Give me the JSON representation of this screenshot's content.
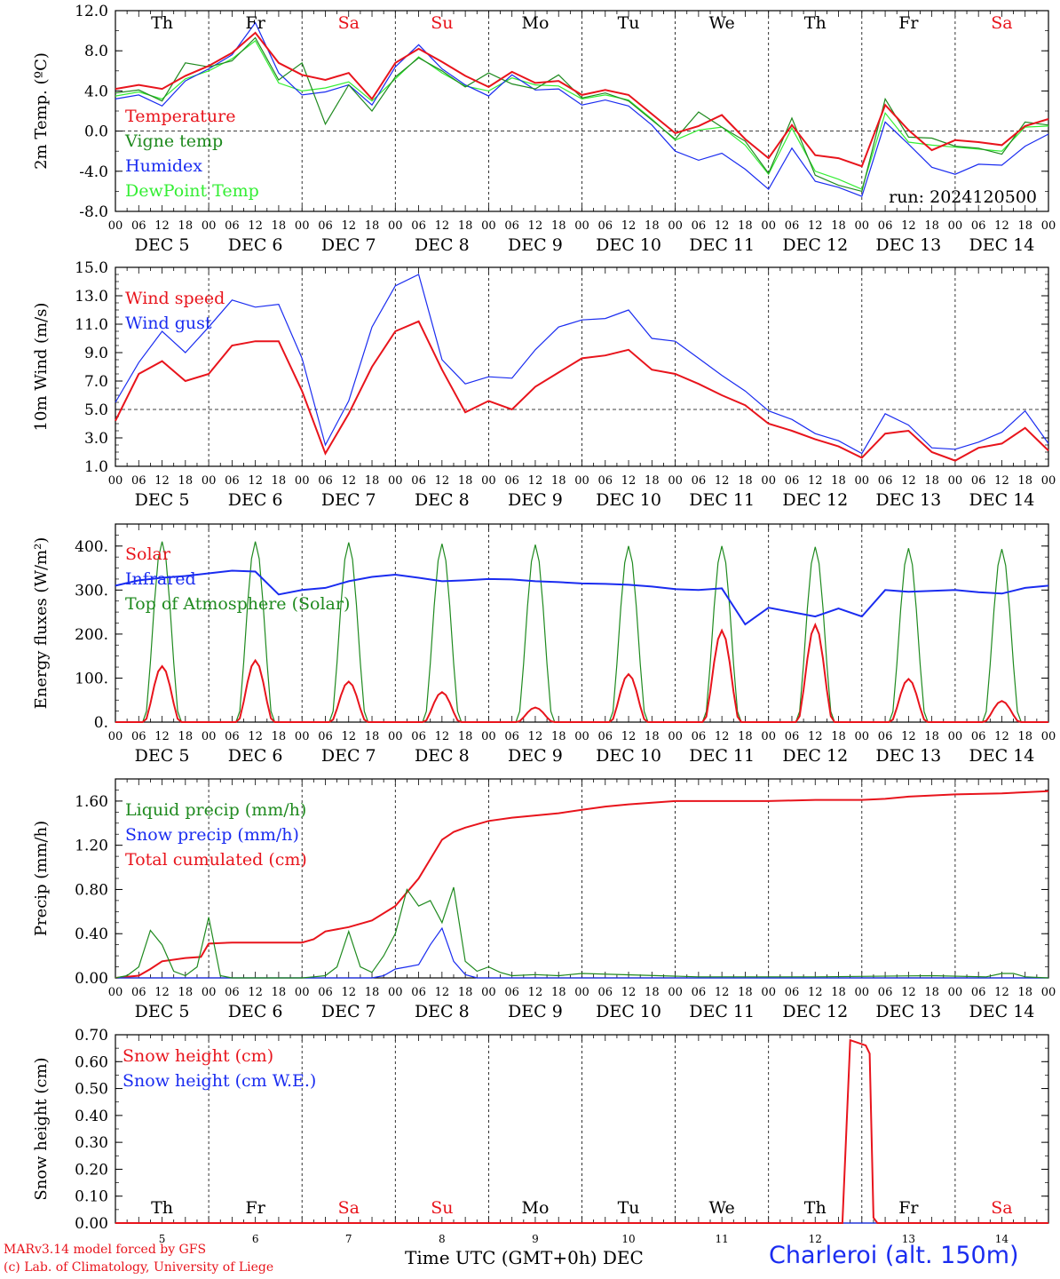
{
  "meta": {
    "run_label": "run: 2024120500",
    "footer_model": "MARv3.14 model forced by GFS",
    "footer_lab": "(c) Lab. of Climatology, University of Liege",
    "footer_axis": "Time UTC (GMT+0h) DEC",
    "station": "Charleroi (alt. 150m)"
  },
  "axes": {
    "weekdays": [
      "Th",
      "Fr",
      "Sa",
      "Su",
      "Mo",
      "Tu",
      "We",
      "Th",
      "Fr",
      "Sa"
    ],
    "weekday_weekend": [
      false,
      false,
      true,
      true,
      false,
      false,
      false,
      false,
      false,
      true
    ],
    "date_labels": [
      "DEC  5",
      "DEC  6",
      "DEC  7",
      "DEC  8",
      "DEC  9",
      "DEC 10",
      "DEC 11",
      "DEC 12",
      "DEC 13",
      "DEC 14"
    ],
    "hour_ticks": [
      "00",
      "06",
      "12",
      "18"
    ],
    "day_numbers": [
      "5",
      "6",
      "7",
      "8",
      "9",
      "10",
      "11",
      "12",
      "13",
      "14"
    ]
  },
  "colors": {
    "red": "#e8141c",
    "green": "#1f8a1f",
    "blue": "#1a2cf0",
    "lightgreen": "#33ee33"
  },
  "chart_data": [
    {
      "type": "line",
      "ylabel": "2m Temp. (ºC)",
      "ylim": [
        -8,
        12
      ],
      "yticks": [
        "12.0",
        "8.0",
        "4.0",
        "0.0",
        "-4.0",
        "-8.0"
      ],
      "reference_line": 0,
      "x_unit": "hours since DEC 5 00 UTC",
      "series": [
        {
          "name": "Temperature",
          "color": "red",
          "x": [
            0,
            6,
            12,
            18,
            24,
            30,
            36,
            42,
            48,
            54,
            60,
            66,
            72,
            78,
            84,
            90,
            96,
            102,
            108,
            114,
            120,
            126,
            132,
            138,
            144,
            150,
            156,
            162,
            168,
            174,
            180,
            186,
            192,
            198,
            204,
            210,
            216,
            222,
            228,
            234,
            240
          ],
          "y": [
            4.2,
            4.6,
            4.2,
            5.5,
            6.5,
            7.8,
            9.8,
            6.8,
            5.6,
            5.1,
            5.8,
            3.2,
            6.8,
            8.2,
            6.9,
            5.5,
            4.4,
            5.9,
            4.8,
            5.0,
            3.6,
            4.1,
            3.6,
            1.7,
            -0.2,
            0.5,
            1.6,
            -0.8,
            -2.7,
            0.6,
            -2.4,
            -2.7,
            -3.5,
            2.6,
            0.1,
            -1.9,
            -0.9,
            -1.1,
            -1.4,
            0.5,
            1.2
          ]
        },
        {
          "name": "Vigne temp",
          "color": "green",
          "x": [
            0,
            6,
            12,
            18,
            24,
            30,
            36,
            42,
            48,
            54,
            60,
            66,
            72,
            78,
            84,
            90,
            96,
            102,
            108,
            114,
            120,
            126,
            132,
            138,
            144,
            150,
            156,
            162,
            168,
            174,
            180,
            186,
            192,
            198,
            204,
            210,
            216,
            222,
            228,
            234,
            240
          ],
          "y": [
            3.8,
            4.1,
            3.0,
            6.8,
            6.4,
            7.0,
            9.3,
            5.1,
            6.8,
            0.7,
            4.6,
            2.0,
            5.4,
            7.3,
            6.0,
            4.4,
            5.8,
            4.7,
            4.2,
            5.6,
            3.3,
            3.8,
            3.0,
            1.1,
            -0.8,
            1.9,
            0.4,
            -1.0,
            -4.2,
            1.3,
            -4.4,
            -5.4,
            -6.0,
            3.2,
            -0.6,
            -0.7,
            -1.5,
            -1.7,
            -2.3,
            0.9,
            0.6
          ]
        },
        {
          "name": "Humidex",
          "color": "blue",
          "x": [
            0,
            6,
            12,
            18,
            24,
            30,
            36,
            42,
            48,
            54,
            60,
            66,
            72,
            78,
            84,
            90,
            96,
            102,
            108,
            114,
            120,
            126,
            132,
            138,
            144,
            150,
            156,
            162,
            168,
            174,
            180,
            186,
            192,
            198,
            204,
            210,
            216,
            222,
            228,
            234,
            240
          ],
          "y": [
            3.2,
            3.6,
            2.5,
            5.0,
            6.2,
            7.6,
            10.8,
            5.8,
            3.6,
            3.9,
            4.6,
            2.6,
            6.4,
            8.6,
            6.2,
            4.6,
            3.5,
            5.6,
            4.1,
            4.2,
            2.6,
            3.1,
            2.5,
            0.6,
            -2.0,
            -2.9,
            -2.2,
            -3.8,
            -5.8,
            -1.7,
            -5.0,
            -5.6,
            -6.5,
            0.9,
            -1.3,
            -3.6,
            -4.3,
            -3.3,
            -3.4,
            -1.5,
            -0.3
          ]
        },
        {
          "name": "DewPoint Temp",
          "color": "lightgreen",
          "x": [
            0,
            6,
            12,
            18,
            24,
            30,
            36,
            42,
            48,
            54,
            60,
            66,
            72,
            78,
            84,
            90,
            96,
            102,
            108,
            114,
            120,
            126,
            132,
            138,
            144,
            150,
            156,
            162,
            168,
            174,
            180,
            186,
            192,
            198,
            204,
            210,
            216,
            222,
            228,
            234,
            240
          ],
          "y": [
            3.5,
            3.9,
            3.2,
            5.2,
            6.0,
            7.2,
            9.0,
            4.8,
            4.0,
            4.3,
            4.9,
            3.0,
            5.2,
            7.4,
            5.8,
            4.5,
            4.0,
            5.3,
            4.6,
            4.5,
            3.2,
            3.6,
            3.1,
            1.2,
            -0.9,
            0.1,
            0.4,
            -1.4,
            -4.3,
            0.3,
            -4.0,
            -4.8,
            -5.8,
            1.8,
            -1.1,
            -1.4,
            -1.6,
            -1.8,
            -2.0,
            0.4,
            0.5
          ]
        }
      ]
    },
    {
      "type": "line",
      "ylabel": "10m Wind (m/s)",
      "ylim": [
        1,
        15
      ],
      "yticks": [
        "15.0",
        "13.0",
        "11.0",
        "9.0",
        "7.0",
        "5.0",
        "3.0",
        "1.0"
      ],
      "reference_line": 5,
      "x_unit": "hours since DEC 5 00 UTC",
      "series": [
        {
          "name": "Wind speed",
          "color": "red",
          "x": [
            0,
            6,
            12,
            18,
            24,
            30,
            36,
            42,
            48,
            54,
            60,
            66,
            72,
            78,
            84,
            90,
            96,
            102,
            108,
            114,
            120,
            126,
            132,
            138,
            144,
            150,
            156,
            162,
            168,
            174,
            180,
            186,
            192,
            198,
            204,
            210,
            216,
            222,
            228,
            234,
            240
          ],
          "y": [
            4.2,
            7.5,
            8.4,
            7.0,
            7.5,
            9.5,
            9.8,
            9.8,
            6.3,
            1.9,
            4.7,
            8.0,
            10.5,
            11.2,
            7.8,
            4.8,
            5.6,
            5.0,
            6.6,
            7.6,
            8.6,
            8.8,
            9.2,
            7.8,
            7.5,
            6.8,
            6.0,
            5.3,
            4.0,
            3.5,
            2.9,
            2.4,
            1.6,
            3.3,
            3.5,
            2.0,
            1.4,
            2.3,
            2.6,
            3.7,
            2.1
          ]
        },
        {
          "name": "Wind gust",
          "color": "blue",
          "x": [
            0,
            6,
            12,
            18,
            24,
            30,
            36,
            42,
            48,
            54,
            60,
            66,
            72,
            78,
            84,
            90,
            96,
            102,
            108,
            114,
            120,
            126,
            132,
            138,
            144,
            150,
            156,
            162,
            168,
            174,
            180,
            186,
            192,
            198,
            204,
            210,
            216,
            222,
            228,
            234,
            240
          ],
          "y": [
            5.5,
            8.3,
            10.5,
            9.0,
            10.8,
            12.7,
            12.2,
            12.4,
            8.6,
            2.5,
            5.6,
            10.8,
            13.7,
            14.5,
            8.5,
            6.8,
            7.3,
            7.2,
            9.2,
            10.8,
            11.3,
            11.4,
            12.0,
            10.0,
            9.8,
            8.6,
            7.4,
            6.3,
            4.9,
            4.3,
            3.3,
            2.8,
            1.9,
            4.7,
            3.9,
            2.3,
            2.2,
            2.7,
            3.4,
            4.9,
            2.6
          ]
        }
      ]
    },
    {
      "type": "line",
      "ylabel": "Energy fluxes (W/m²)",
      "ylim": [
        0,
        450
      ],
      "yticks": [
        "400.",
        "300.",
        "200.",
        "100.",
        "0."
      ],
      "x_unit": "hours since DEC 5 00 UTC",
      "series": [
        {
          "name": "Solar",
          "color": "red",
          "peaks": [
            127,
            140,
            92,
            68,
            33,
            109,
            208,
            221,
            98,
            48
          ]
        },
        {
          "name": "Infrared",
          "color": "blue",
          "x": [
            0,
            6,
            12,
            18,
            24,
            30,
            36,
            42,
            48,
            54,
            60,
            66,
            72,
            78,
            84,
            90,
            96,
            102,
            108,
            114,
            120,
            126,
            132,
            138,
            144,
            150,
            156,
            162,
            168,
            174,
            180,
            186,
            192,
            198,
            204,
            210,
            216,
            222,
            228,
            234,
            240
          ],
          "y": [
            310,
            322,
            328,
            332,
            338,
            344,
            342,
            290,
            300,
            305,
            320,
            330,
            335,
            328,
            320,
            322,
            325,
            324,
            320,
            318,
            315,
            314,
            312,
            308,
            302,
            300,
            304,
            222,
            260,
            250,
            240,
            258,
            240,
            300,
            296,
            298,
            300,
            295,
            292,
            305,
            310
          ]
        },
        {
          "name": "Top of Atmosphere (Solar)",
          "color": "green",
          "peaks": [
            410,
            410,
            408,
            405,
            403,
            400,
            400,
            398,
            395,
            393
          ]
        }
      ]
    },
    {
      "type": "line",
      "ylabel": "Precip (mm/h)",
      "ylim": [
        0,
        1.8
      ],
      "yticks": [
        "1.60",
        "1.20",
        "0.80",
        "0.40",
        "0.00"
      ],
      "x_unit": "hours since DEC 5 00 UTC",
      "series": [
        {
          "name": "Liquid precip (mm/h)",
          "color": "green",
          "x": [
            0,
            3,
            6,
            9,
            12,
            15,
            18,
            21,
            24,
            27,
            30,
            36,
            42,
            48,
            51,
            54,
            57,
            60,
            63,
            66,
            69,
            72,
            75,
            78,
            81,
            84,
            87,
            90,
            93,
            96,
            99,
            102,
            108,
            114,
            120,
            150,
            180,
            210,
            224,
            228,
            231,
            234,
            240
          ],
          "y": [
            0,
            0.02,
            0.1,
            0.43,
            0.3,
            0.06,
            0.02,
            0.1,
            0.55,
            0.02,
            0,
            0,
            0,
            0,
            0.01,
            0.02,
            0.1,
            0.42,
            0.1,
            0.05,
            0.2,
            0.4,
            0.8,
            0.65,
            0.7,
            0.5,
            0.82,
            0.15,
            0.06,
            0.1,
            0.05,
            0.02,
            0.03,
            0.02,
            0.04,
            0.01,
            0.01,
            0.02,
            0.01,
            0.04,
            0.04,
            0.01,
            0
          ]
        },
        {
          "name": "Snow precip (mm/h)",
          "color": "blue",
          "x": [
            0,
            60,
            63,
            66,
            69,
            72,
            75,
            78,
            81,
            84,
            87,
            90,
            93,
            96,
            240
          ],
          "y": [
            0,
            0,
            0,
            0,
            0.02,
            0.08,
            0.1,
            0.12,
            0.3,
            0.45,
            0.15,
            0.03,
            0,
            0,
            0
          ]
        },
        {
          "name": "Total cumulated (cm)",
          "color": "red",
          "x": [
            0,
            6,
            9,
            12,
            18,
            22,
            24,
            30,
            36,
            42,
            48,
            51,
            54,
            60,
            66,
            72,
            78,
            84,
            87,
            90,
            96,
            102,
            108,
            114,
            120,
            126,
            132,
            144,
            156,
            168,
            180,
            192,
            198,
            204,
            216,
            228,
            240
          ],
          "y": [
            0,
            0.02,
            0.08,
            0.15,
            0.18,
            0.19,
            0.31,
            0.32,
            0.32,
            0.32,
            0.32,
            0.35,
            0.42,
            0.46,
            0.52,
            0.65,
            0.9,
            1.25,
            1.32,
            1.36,
            1.42,
            1.45,
            1.47,
            1.49,
            1.52,
            1.55,
            1.57,
            1.6,
            1.6,
            1.6,
            1.61,
            1.61,
            1.62,
            1.64,
            1.66,
            1.67,
            1.69
          ]
        }
      ]
    },
    {
      "type": "line",
      "ylabel": "Snow height (cm)",
      "ylim": [
        0,
        0.7
      ],
      "yticks": [
        "0.70",
        "0.60",
        "0.50",
        "0.40",
        "0.30",
        "0.20",
        "0.10",
        "0.00"
      ],
      "x_unit": "hours since DEC 5 00 UTC",
      "series": [
        {
          "name": "Snow height (cm)",
          "color": "red",
          "x": [
            0,
            187,
            189,
            191,
            193,
            194,
            195,
            196,
            240
          ],
          "y": [
            0,
            0,
            0.68,
            0.67,
            0.66,
            0.63,
            0.02,
            0,
            0
          ]
        },
        {
          "name": "Snow height (cm W.E.)",
          "color": "blue",
          "x": [
            0,
            240
          ],
          "y": [
            0,
            0
          ]
        }
      ]
    }
  ]
}
